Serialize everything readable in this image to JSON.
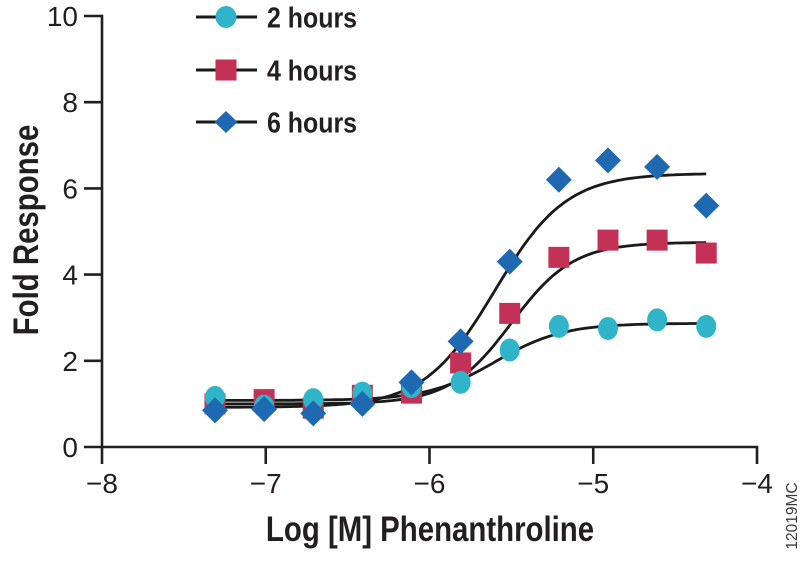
{
  "figure": {
    "watermark": "12019MC",
    "background": "#ffffff",
    "axis_color": "#231f20",
    "curve_color": "#1a1a1a"
  },
  "chart_data": {
    "type": "scatter",
    "title": "",
    "xlabel": "Log [M] Phenanthroline",
    "ylabel": "Fold Response",
    "xlim": [
      -8,
      -4
    ],
    "ylim": [
      0,
      10
    ],
    "x_ticks": [
      -8,
      -7,
      -6,
      -5,
      -4
    ],
    "x_tick_labels": [
      "−8",
      "−7",
      "−6",
      "−5",
      "−4"
    ],
    "y_ticks": [
      0,
      2,
      4,
      6,
      8,
      10
    ],
    "y_tick_labels": [
      "0",
      "2",
      "4",
      "6",
      "8",
      "10"
    ],
    "grid": false,
    "legend_position": "top-left-inside",
    "x": [
      -7.31,
      -7.01,
      -6.71,
      -6.41,
      -6.11,
      -5.81,
      -5.51,
      -5.21,
      -4.91,
      -4.61,
      -4.31
    ],
    "series": [
      {
        "name": "2 hours",
        "marker": "circle",
        "color": "#2fb4c9",
        "values": [
          1.15,
          0.95,
          1.1,
          1.25,
          1.4,
          1.5,
          2.25,
          2.8,
          2.75,
          2.95,
          2.8
        ],
        "fit": {
          "bottom": 1.08,
          "top": 2.87,
          "logec50": -5.6,
          "hill": 2.1
        }
      },
      {
        "name": "4 hours",
        "marker": "square",
        "color": "#c43156",
        "values": [
          1.0,
          1.1,
          0.9,
          1.2,
          1.25,
          1.95,
          3.1,
          4.4,
          4.8,
          4.8,
          4.5
        ],
        "fit": {
          "bottom": 1.0,
          "top": 4.75,
          "logec50": -5.5,
          "hill": 2.3
        }
      },
      {
        "name": "6 hours",
        "marker": "diamond",
        "color": "#1f68b2",
        "values": [
          0.85,
          0.88,
          0.78,
          1.0,
          1.5,
          2.45,
          4.3,
          6.2,
          6.65,
          6.5,
          5.6
        ],
        "fit": {
          "bottom": 0.92,
          "top": 6.35,
          "logec50": -5.6,
          "hill": 2.0
        }
      }
    ],
    "curve_x_range": [
      -7.37,
      -4.31
    ]
  }
}
